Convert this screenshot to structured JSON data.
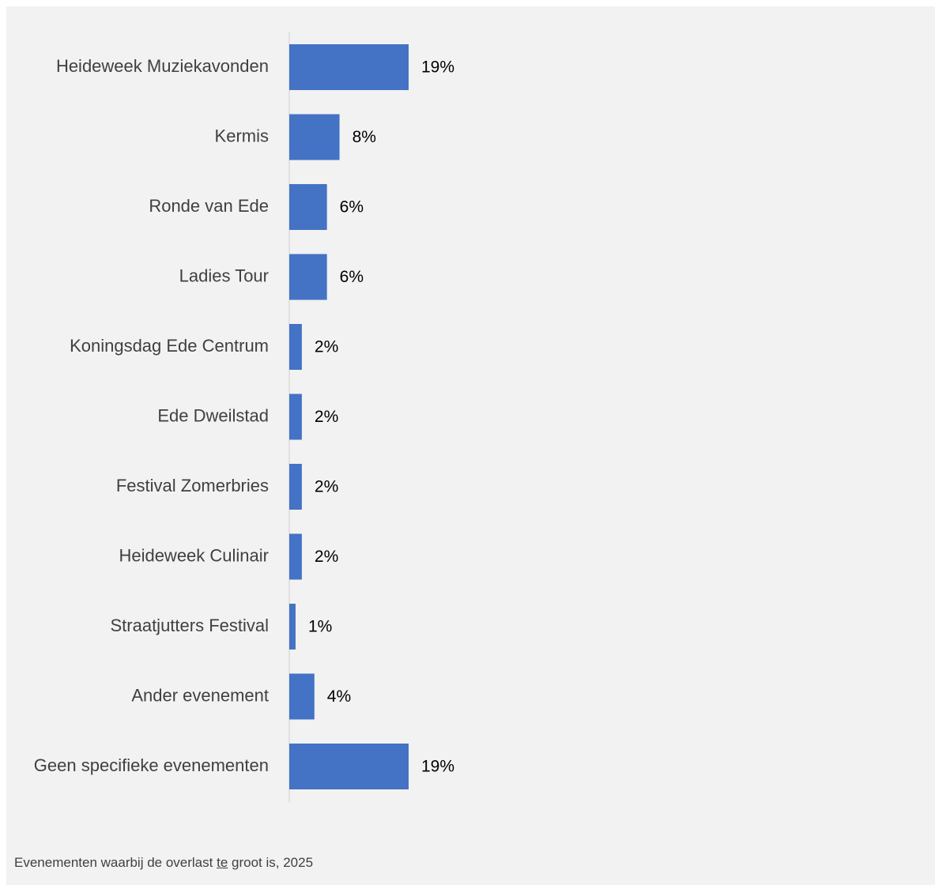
{
  "chart_data": {
    "type": "bar",
    "orientation": "horizontal",
    "categories": [
      "Heideweek Muziekavonden",
      "Kermis",
      "Ronde van Ede",
      "Ladies Tour",
      "Koningsdag Ede Centrum",
      "Ede Dweilstad",
      "Festival Zomerbries",
      "Heideweek Culinair",
      "Straatjutters Festival",
      "Ander evenement",
      "Geen specifieke evenementen"
    ],
    "values": [
      19,
      8,
      6,
      6,
      2,
      2,
      2,
      2,
      1,
      4,
      19
    ],
    "value_labels": [
      "19%",
      "8%",
      "6%",
      "6%",
      "2%",
      "2%",
      "2%",
      "2%",
      "1%",
      "4%",
      "19%"
    ],
    "unit": "%",
    "bar_color": "#4472c4",
    "background": "#f2f2f2",
    "grid": false
  },
  "caption": {
    "before": "Evenementen waarbij de overlast ",
    "underlined": "te",
    "after": " groot is, 2025"
  }
}
